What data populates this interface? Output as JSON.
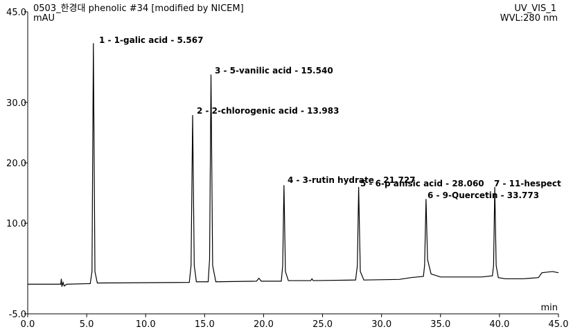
{
  "chart_data": {
    "type": "line",
    "title": "0503_한경대 phenolic #34 [modified by NICEM]",
    "channel": "UV_VIS_1",
    "wavelength": "WVL:280 nm",
    "y_label": "mAU",
    "x_label": "min",
    "color": "#000000",
    "xlim": [
      0,
      45
    ],
    "ylim": [
      -5,
      45
    ],
    "xticks": [
      {
        "value": 0,
        "label": "0.0"
      },
      {
        "value": 5,
        "label": "5.0"
      },
      {
        "value": 10,
        "label": "10.0"
      },
      {
        "value": 15,
        "label": "15.0"
      },
      {
        "value": 20,
        "label": "20.0"
      },
      {
        "value": 25,
        "label": "25.0"
      },
      {
        "value": 30,
        "label": "30.0"
      },
      {
        "value": 35,
        "label": "35.0"
      },
      {
        "value": 40,
        "label": "40.0"
      },
      {
        "value": 45,
        "label": "45.0"
      }
    ],
    "yticks": [
      {
        "value": -5,
        "label": "-5.0"
      },
      {
        "value": 10,
        "label": "10.0"
      },
      {
        "value": 20,
        "label": "20.0"
      },
      {
        "value": 30,
        "label": "30.0"
      },
      {
        "value": 45,
        "label": "45.0"
      }
    ],
    "annotations": [
      "1 - 1-galic acid - 5.567",
      "2 - 2-chlorogenic acid - 13.983",
      "3 - 5-vanilic acid - 15.540",
      "4 - 3-rutin hydrate - 21.727",
      "5 - 6-p anisic acid - 28.060",
      "6 - 9-Quercetin - 33.773",
      "7 - 11-hespect"
    ],
    "x": [
      0,
      2.8,
      2.85,
      2.9,
      3.0,
      3.1,
      3.3,
      5.3,
      5.45,
      5.567,
      5.7,
      5.9,
      13.7,
      13.85,
      13.983,
      14.12,
      14.3,
      15.3,
      15.42,
      15.54,
      15.68,
      15.95,
      19.4,
      19.6,
      19.8,
      21.5,
      21.62,
      21.727,
      21.85,
      22.1,
      24.0,
      24.1,
      24.2,
      27.8,
      27.95,
      28.06,
      28.2,
      28.5,
      31.5,
      32.5,
      33.55,
      33.65,
      33.773,
      33.9,
      34.2,
      35.0,
      38.5,
      39.4,
      39.5,
      39.6,
      39.72,
      39.9,
      40.5,
      42.0,
      43.3,
      43.6,
      44.5,
      45.0
    ],
    "values": [
      -0.1,
      -0.1,
      0.8,
      -0.5,
      0.2,
      -0.4,
      -0.1,
      0.0,
      2,
      39.8,
      2,
      0.1,
      0.2,
      3,
      27.9,
      3,
      0.3,
      0.3,
      4,
      34.6,
      3,
      0.3,
      0.4,
      0.9,
      0.4,
      0.4,
      3,
      16.3,
      2,
      0.5,
      0.5,
      0.8,
      0.5,
      0.6,
      3,
      16.0,
      2,
      0.6,
      0.7,
      1.0,
      1.2,
      3,
      14.0,
      4,
      1.6,
      1.1,
      1.1,
      1.3,
      3,
      16.0,
      3,
      1.0,
      0.8,
      0.8,
      1.0,
      1.8,
      2.0,
      1.8
    ]
  }
}
